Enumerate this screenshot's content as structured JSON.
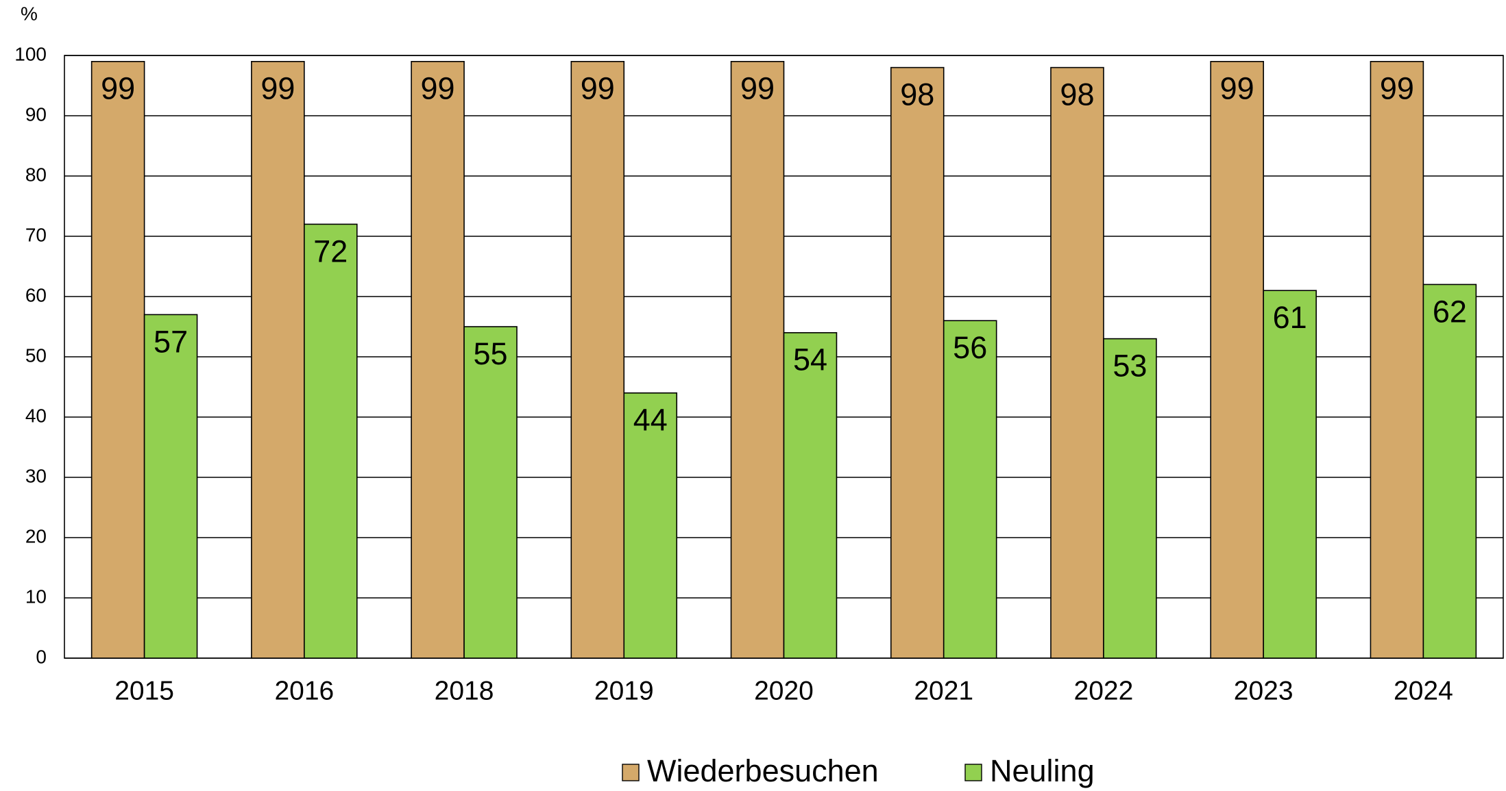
{
  "chart_data": {
    "type": "bar",
    "y_label": "%",
    "categories": [
      "2015",
      "2016",
      "2018",
      "2019",
      "2020",
      "2021",
      "2022",
      "2023",
      "2024"
    ],
    "series": [
      {
        "name": "Wiederbesuchen",
        "color": "#d4a96a",
        "values": [
          99,
          99,
          99,
          99,
          99,
          98,
          98,
          99,
          99
        ]
      },
      {
        "name": "Neuling",
        "color": "#92d050",
        "values": [
          57,
          72,
          55,
          44,
          54,
          56,
          53,
          61,
          62
        ]
      }
    ],
    "ylim": [
      0,
      100
    ],
    "yticks": [
      0,
      10,
      20,
      30,
      40,
      50,
      60,
      70,
      80,
      90,
      100
    ],
    "grid": true,
    "legend": "bottom"
  }
}
